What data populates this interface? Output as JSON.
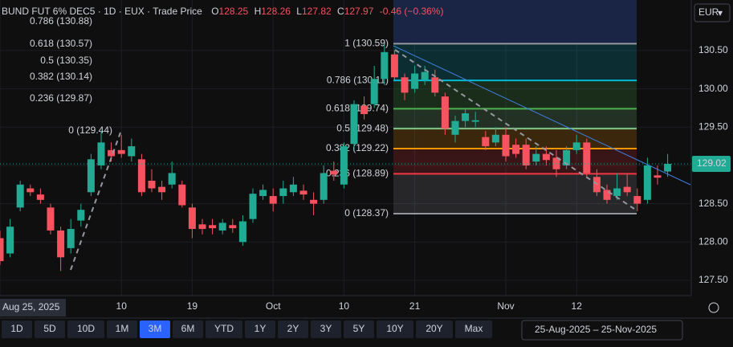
{
  "header": {
    "symbol": "BUND FUT 6% DEC5 · 1D · EUX · Trade Price",
    "o_label": "O",
    "o": "128.25",
    "h_label": "H",
    "h": "128.26",
    "l_label": "L",
    "l": "127.82",
    "c_label": "C",
    "c": "127.97",
    "change": "-0.46 (−0.36%)"
  },
  "currency": "EUR",
  "toolbar": {
    "ranges": [
      "1D",
      "5D",
      "10D",
      "1M",
      "3M",
      "6M",
      "YTD",
      "1Y",
      "2Y",
      "3Y",
      "5Y",
      "10Y",
      "20Y",
      "Max"
    ],
    "active": "3M",
    "date_range": "25-Aug-2025 – 25-Nov-2025"
  },
  "chart_data": {
    "type": "candlestick",
    "up_color": "#22ab94",
    "down_color": "#f7525f",
    "categories": [
      "Aug 25, 2025",
      null,
      null,
      null,
      null,
      null,
      null,
      null,
      null,
      null,
      null,
      null,
      "10",
      null,
      null,
      null,
      null,
      null,
      null,
      "19",
      null,
      null,
      null,
      null,
      null,
      null,
      null,
      "Oct",
      null,
      null,
      null,
      null,
      null,
      null,
      "10",
      null,
      null,
      null,
      null,
      null,
      null,
      "21",
      null,
      null,
      null,
      null,
      null,
      null,
      null,
      null,
      "Nov",
      null,
      null,
      null,
      null,
      null,
      null,
      "12",
      null,
      null,
      null,
      null,
      null,
      null,
      null,
      null,
      null
    ],
    "open": [
      128.05,
      127.85,
      128.45,
      128.7,
      128.62,
      128.45,
      128.15,
      127.92,
      128.28,
      128.65,
      129.0,
      129.2,
      129.2,
      129.12,
      129.08,
      128.8,
      128.72,
      128.75,
      128.75,
      128.45,
      128.23,
      128.22,
      128.15,
      128.22,
      128.0,
      128.3,
      128.6,
      128.6,
      128.6,
      128.65,
      128.67,
      128.55,
      128.55,
      128.93,
      128.75,
      129.28,
      129.78,
      129.8,
      130.13,
      130.45,
      130.15,
      130.0,
      130.12,
      130.15,
      129.9,
      129.4,
      129.58,
      129.57,
      129.37,
      129.3,
      129.4,
      129.27,
      129.27,
      129.05,
      129.15,
      129.1,
      129.0,
      129.2,
      129.3,
      128.85,
      128.68,
      128.6,
      128.72,
      128.6,
      128.55,
      128.87,
      128.92
    ],
    "high": [
      128.15,
      128.3,
      128.8,
      128.75,
      128.7,
      128.5,
      128.2,
      128.3,
      128.5,
      129.15,
      129.45,
      129.3,
      129.4,
      129.35,
      129.15,
      128.95,
      128.8,
      129.05,
      128.8,
      128.5,
      128.3,
      128.3,
      128.3,
      128.3,
      128.35,
      128.7,
      128.75,
      128.7,
      128.8,
      128.85,
      128.75,
      128.65,
      129.0,
      129.05,
      129.3,
      129.85,
      129.9,
      130.3,
      130.59,
      130.5,
      130.2,
      130.3,
      130.3,
      130.25,
      129.95,
      129.65,
      129.75,
      129.7,
      129.45,
      129.5,
      129.5,
      129.35,
      129.35,
      129.25,
      129.25,
      129.2,
      129.25,
      129.4,
      129.35,
      128.95,
      128.75,
      128.9,
      128.9,
      128.7,
      129.1,
      129.0,
      129.15
    ],
    "low": [
      127.7,
      127.8,
      128.4,
      128.6,
      128.5,
      128.1,
      127.62,
      127.85,
      128.2,
      128.6,
      128.95,
      129.05,
      129.1,
      129.05,
      128.6,
      128.65,
      128.55,
      128.7,
      128.45,
      128.05,
      128.1,
      128.1,
      128.1,
      128.12,
      127.95,
      128.25,
      128.55,
      128.4,
      128.5,
      128.6,
      128.55,
      128.35,
      128.5,
      128.8,
      128.7,
      129.2,
      129.6,
      129.75,
      130.05,
      130.1,
      129.85,
      129.95,
      130.05,
      129.9,
      129.4,
      129.3,
      129.5,
      129.5,
      129.2,
      129.25,
      129.05,
      129.1,
      128.95,
      129.0,
      129.0,
      128.85,
      128.95,
      129.15,
      128.85,
      128.6,
      128.5,
      128.55,
      128.6,
      128.4,
      128.5,
      128.75,
      128.85
    ],
    "close": [
      127.75,
      128.2,
      128.75,
      128.65,
      128.55,
      128.15,
      127.8,
      128.17,
      128.42,
      129.08,
      129.3,
      129.12,
      129.15,
      129.25,
      128.65,
      128.7,
      128.65,
      128.9,
      128.48,
      128.17,
      128.17,
      128.18,
      128.25,
      128.18,
      128.27,
      128.63,
      128.68,
      128.5,
      128.7,
      128.75,
      128.62,
      128.5,
      128.9,
      128.88,
      129.25,
      129.8,
      129.67,
      130.13,
      130.48,
      130.15,
      129.95,
      130.2,
      130.22,
      129.95,
      129.48,
      129.58,
      129.68,
      129.59,
      129.25,
      129.4,
      129.12,
      129.15,
      129.0,
      129.15,
      129.07,
      128.95,
      129.2,
      129.3,
      128.9,
      128.65,
      128.55,
      128.7,
      128.65,
      128.5,
      129.0,
      128.84,
      129.02
    ],
    "ylim": [
      127.3,
      131.16
    ],
    "yticks": [
      {
        "value": 127.5,
        "label": "127.50"
      },
      {
        "value": 128,
        "label": "128.00"
      },
      {
        "value": 128.5,
        "label": "128.50"
      },
      {
        "value": 129,
        "label": "129.00"
      },
      {
        "value": 129.5,
        "label": "129.50"
      },
      {
        "value": 130,
        "label": "130.00"
      },
      {
        "value": 130.5,
        "label": "130.50"
      }
    ],
    "grid": true,
    "last_price": 129.02,
    "fib_levels": [
      {
        "label": "1 (130.59)",
        "value": 130.59,
        "color": "#9598a1"
      },
      {
        "label": "0.786 (130.11)",
        "value": 130.11,
        "color": "#00bcd4"
      },
      {
        "label": "0.618 (129.74)",
        "value": 129.74,
        "color": "#4caf50"
      },
      {
        "label": "0.5 (129.48)",
        "value": 129.48,
        "color": "#81c784"
      },
      {
        "label": "0.382 (129.22)",
        "value": 129.22,
        "color": "#ff9800"
      },
      {
        "label": "0.236 (128.89)",
        "value": 128.89,
        "color": "#f23645"
      },
      {
        "label": "0 (128.37)",
        "value": 128.37,
        "color": "#9598a1"
      }
    ],
    "annotations": [
      {
        "text": "0.786 (130.88)",
        "color": "#00bcd4"
      },
      {
        "text": "0.618 (130.57)",
        "color": "#4caf50"
      },
      {
        "text": "0.5 (130.35)",
        "color": "#81c784"
      },
      {
        "text": "0.382 (130.14)",
        "color": "#ff9800"
      },
      {
        "text": "0.236 (129.87)",
        "color": "#f23645"
      },
      {
        "text": "0 (129.44)",
        "color": "#9598a1"
      }
    ]
  }
}
